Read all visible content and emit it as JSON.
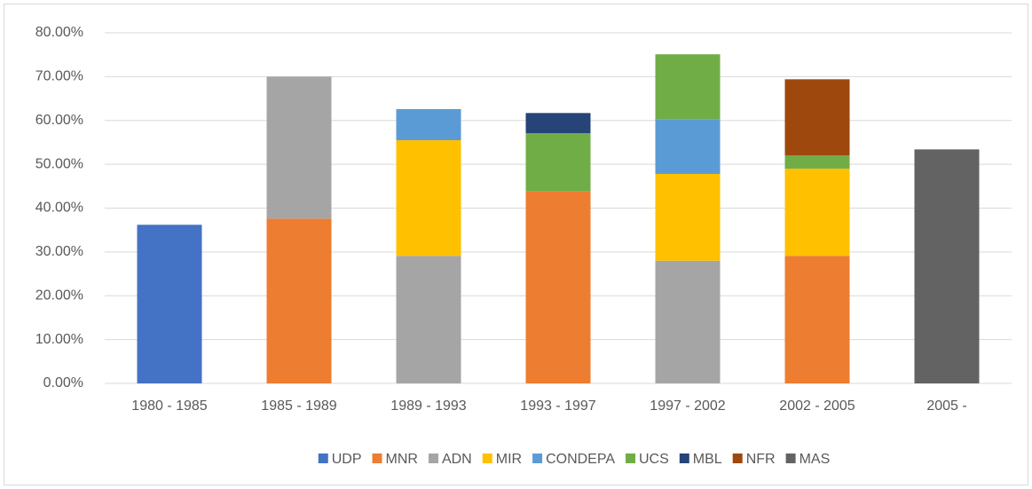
{
  "chart_data": {
    "type": "bar",
    "stacked": true,
    "categories": [
      "1980 - 1985",
      "1985 - 1989",
      "1989 - 1993",
      "1993 - 1997",
      "1997 - 2002",
      "2002 - 2005",
      "2005 -"
    ],
    "series": [
      {
        "name": "UDP",
        "color": "#4472c4",
        "values": [
          36.2,
          null,
          null,
          null,
          null,
          null,
          null
        ]
      },
      {
        "name": "MNR",
        "color": "#ed7d31",
        "values": [
          null,
          37.6,
          null,
          43.8,
          null,
          29.1,
          null
        ]
      },
      {
        "name": "ADN",
        "color": "#a5a5a5",
        "values": [
          null,
          32.4,
          29.1,
          null,
          28.0,
          null,
          null
        ]
      },
      {
        "name": "MIR",
        "color": "#ffc000",
        "values": [
          null,
          null,
          26.4,
          null,
          19.8,
          19.9,
          null
        ]
      },
      {
        "name": "CONDEPA",
        "color": "#5b9bd5",
        "values": [
          null,
          null,
          7.1,
          null,
          12.5,
          null,
          null
        ]
      },
      {
        "name": "UCS",
        "color": "#70ad47",
        "values": [
          null,
          null,
          null,
          13.3,
          14.8,
          3.0,
          null
        ]
      },
      {
        "name": "MBL",
        "color": "#264478",
        "values": [
          null,
          null,
          null,
          4.6,
          null,
          null,
          null
        ]
      },
      {
        "name": "NFR",
        "color": "#9e480e",
        "values": [
          null,
          null,
          null,
          null,
          null,
          17.4,
          null
        ]
      },
      {
        "name": "MAS",
        "color": "#636363",
        "values": [
          null,
          null,
          null,
          null,
          null,
          null,
          53.4
        ]
      }
    ],
    "ylim": [
      0,
      80
    ],
    "yticks": [
      {
        "value": 0,
        "label": "0.00%"
      },
      {
        "value": 10,
        "label": "10.00%"
      },
      {
        "value": 20,
        "label": "20.00%"
      },
      {
        "value": 30,
        "label": "30.00%"
      },
      {
        "value": 40,
        "label": "40.00%"
      },
      {
        "value": 50,
        "label": "50.00%"
      },
      {
        "value": 60,
        "label": "60.00%"
      },
      {
        "value": 70,
        "label": "70.00%"
      },
      {
        "value": 80,
        "label": "80.00%"
      }
    ],
    "grid": true,
    "legend": "bottom"
  }
}
